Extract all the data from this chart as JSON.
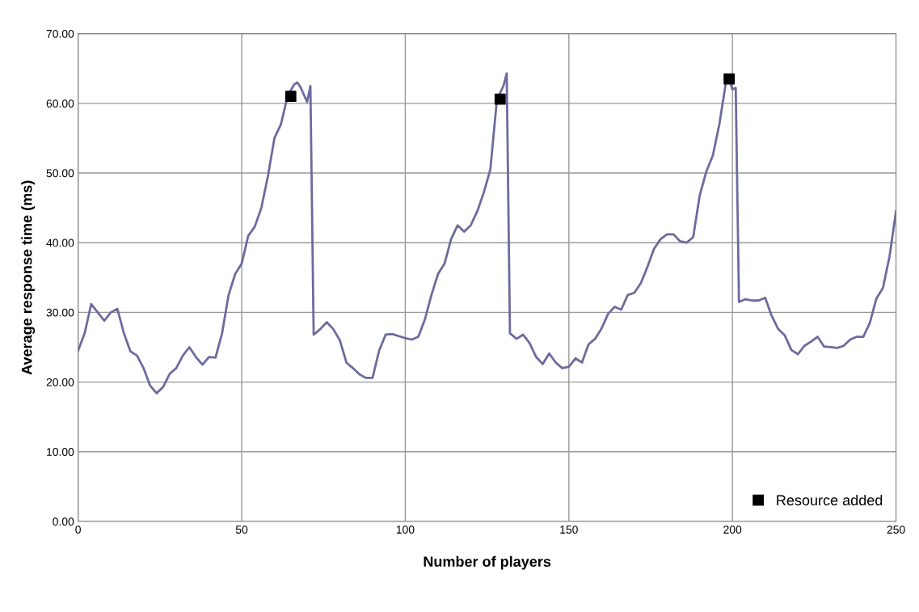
{
  "chart_data": {
    "type": "line",
    "xlabel": "Number of players",
    "ylabel": "Average response time (ms)",
    "xlim": [
      0,
      250
    ],
    "xticks": [
      0,
      50,
      100,
      150,
      200,
      250
    ],
    "ylim": [
      0,
      70
    ],
    "yticks": [
      {
        "value": 0,
        "label": "0.00"
      },
      {
        "value": 10,
        "label": "10.00"
      },
      {
        "value": 20,
        "label": "20.00"
      },
      {
        "value": 30,
        "label": "30.00"
      },
      {
        "value": 40,
        "label": "40.00"
      },
      {
        "value": 50,
        "label": "50.00"
      },
      {
        "value": 60,
        "label": "60.00"
      },
      {
        "value": 70,
        "label": "70.00"
      }
    ],
    "grid": true,
    "legend": "bottom right",
    "marker": "none",
    "line_style": "solid",
    "series": [
      {
        "color": "#6b6b9e",
        "x": [
          0,
          2,
          4,
          6,
          8,
          10,
          12,
          14,
          16,
          18,
          20,
          22,
          24,
          26,
          28,
          30,
          32,
          34,
          36,
          38,
          40,
          42,
          44,
          46,
          48,
          50,
          52,
          54,
          56,
          58,
          60,
          62,
          64,
          66,
          67,
          68,
          70,
          71,
          72,
          74,
          76,
          78,
          80,
          82,
          84,
          86,
          88,
          90,
          92,
          94,
          96,
          98,
          100,
          102,
          104,
          106,
          108,
          110,
          112,
          114,
          116,
          118,
          120,
          122,
          124,
          126,
          128,
          130,
          131,
          132,
          134,
          136,
          138,
          140,
          142,
          144,
          146,
          148,
          150,
          152,
          154,
          156,
          158,
          160,
          162,
          164,
          166,
          168,
          170,
          172,
          174,
          176,
          178,
          180,
          182,
          184,
          186,
          188,
          190,
          192,
          194,
          196,
          198,
          199,
          200,
          201,
          202,
          204,
          206,
          208,
          210,
          212,
          214,
          216,
          218,
          220,
          222,
          224,
          226,
          228,
          230,
          232,
          234,
          236,
          238,
          240,
          242,
          244,
          246,
          248,
          250
        ],
        "values": [
          24.5,
          27,
          31.2,
          30,
          28.8,
          30,
          30.5,
          27,
          24.4,
          23.8,
          22,
          19.5,
          18.4,
          19.3,
          21.2,
          22,
          23.8,
          25,
          23.6,
          22.5,
          23.6,
          23.5,
          27,
          32.5,
          35.5,
          37,
          41,
          42.3,
          45,
          49.5,
          55,
          57,
          61,
          62.7,
          63,
          62.3,
          60.2,
          62.5,
          26.8,
          27.6,
          28.6,
          27.6,
          26,
          22.8,
          22,
          21.1,
          20.6,
          20.6,
          24.5,
          26.8,
          26.9,
          26.6,
          26.3,
          26.1,
          26.5,
          29,
          32.5,
          35.5,
          37,
          40.5,
          42.5,
          41.6,
          42.5,
          44.5,
          47.2,
          50.5,
          60.5,
          62.5,
          64.3,
          27,
          26.2,
          26.8,
          25.6,
          23.6,
          22.6,
          24.1,
          22.8,
          22,
          22.2,
          23.4,
          22.8,
          25.4,
          26.2,
          27.7,
          29.8,
          30.8,
          30.4,
          32.5,
          32.8,
          34.2,
          36.5,
          39.1,
          40.5,
          41.2,
          41.2,
          40.2,
          40,
          40.8,
          46.8,
          50.2,
          52.5,
          57,
          63,
          63.5,
          62,
          62.2,
          31.5,
          31.9,
          31.7,
          31.7,
          32.1,
          29.5,
          27.6,
          26.7,
          24.6,
          24,
          25.2,
          25.8,
          26.5,
          25.1,
          25,
          24.9,
          25.2,
          26.1,
          26.5,
          26.5,
          28.5,
          32,
          33.5,
          38,
          44.5
        ]
      },
      {
        "type": "scatter",
        "name": "Resource added",
        "color": "#000000",
        "marker": "square",
        "x": [
          65,
          129,
          199
        ],
        "values": [
          61,
          60.6,
          63.5
        ]
      }
    ]
  }
}
